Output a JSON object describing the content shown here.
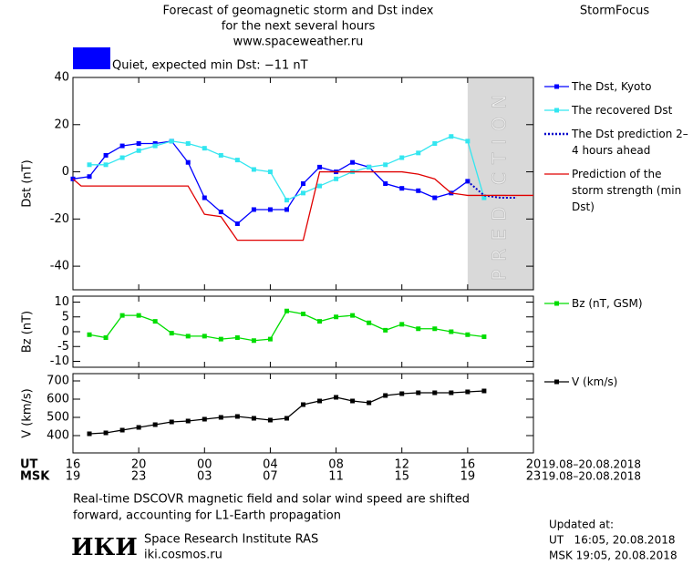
{
  "header": {
    "title_lines": [
      "Forecast of geomagnetic storm and Dst index",
      "for the next several hours",
      "www.spaceweather.ru"
    ],
    "brand": "StormFocus"
  },
  "status": {
    "color": "#0000ff",
    "text": "Quiet, expected min Dst: −11 nT"
  },
  "chart_data": [
    {
      "type": "line",
      "y_label": "Dst (nT)",
      "xlim": [
        16,
        44
      ],
      "ylim": [
        -50,
        40
      ],
      "yticks": [
        -40,
        -20,
        0,
        20,
        40
      ],
      "prediction_span": [
        40,
        44
      ],
      "prediction_label": "PREDICTION",
      "series": [
        {
          "name": "The Dst, Kyoto",
          "color": "#0000ff",
          "marker": true,
          "x": [
            16,
            17,
            18,
            19,
            20,
            21,
            22,
            23,
            24,
            25,
            26,
            27,
            28,
            29,
            30,
            31,
            32,
            33,
            34,
            35,
            36,
            37,
            38,
            39,
            40
          ],
          "values": [
            -3,
            -2,
            7,
            11,
            12,
            12,
            13,
            4,
            -11,
            -17,
            -22,
            -16,
            -16,
            -16,
            -5,
            2,
            0,
            4,
            2,
            -5,
            -7,
            -8,
            -11,
            -9,
            -4
          ]
        },
        {
          "name": "The recovered Dst",
          "color": "#33e6f0",
          "marker": true,
          "x": [
            17,
            18,
            19,
            20,
            21,
            22,
            23,
            24,
            25,
            26,
            27,
            28,
            29,
            30,
            31,
            32,
            33,
            34,
            35,
            36,
            37,
            38,
            39,
            40,
            41
          ],
          "values": [
            3,
            3,
            6,
            9,
            11,
            13,
            12,
            10,
            7,
            5,
            1,
            0,
            -12,
            -9,
            -6,
            -3,
            0,
            2,
            3,
            6,
            8,
            12,
            15,
            13,
            -11
          ]
        },
        {
          "name": "The Dst prediction 2–4 hours ahead",
          "color": "#0000cc",
          "dash": "2 2",
          "marker": false,
          "x": [
            40,
            41,
            42,
            43
          ],
          "values": [
            -4,
            -10,
            -11,
            -11
          ]
        },
        {
          "name": "Prediction of the storm strength (min Dst)",
          "color": "#e00000",
          "marker": false,
          "x": [
            16,
            16.5,
            23,
            24,
            25,
            26,
            30,
            31,
            36,
            37,
            38,
            39,
            40,
            44
          ],
          "values": [
            -3,
            -6,
            -6,
            -18,
            -19,
            -29,
            -29,
            0,
            0,
            -1,
            -3,
            -9,
            -10,
            -10
          ]
        }
      ]
    },
    {
      "type": "line",
      "y_label": "Bz (nT)",
      "xlim": [
        16,
        44
      ],
      "ylim": [
        -12,
        12
      ],
      "yticks": [
        -10,
        -5,
        0,
        5,
        10
      ],
      "series": [
        {
          "name": "Bz (nT, GSM)",
          "color": "#00dd00",
          "marker": true,
          "x": [
            17,
            18,
            19,
            20,
            21,
            22,
            23,
            24,
            25,
            26,
            27,
            28,
            29,
            30,
            31,
            32,
            33,
            34,
            35,
            36,
            37,
            38,
            39,
            40,
            41
          ],
          "values": [
            -1,
            -2,
            5.5,
            5.5,
            3.5,
            -0.5,
            -1.5,
            -1.5,
            -2.5,
            -2,
            -3,
            -2.5,
            7,
            6,
            3.5,
            5,
            5.5,
            3,
            0.5,
            2.5,
            1,
            1,
            0,
            -1,
            -1.7
          ]
        }
      ]
    },
    {
      "type": "line",
      "y_label": "V (km/s)",
      "xlim": [
        16,
        44
      ],
      "ylim": [
        305,
        740
      ],
      "yticks": [
        400,
        500,
        600,
        700
      ],
      "xticks": [
        16,
        20,
        {
          "value": 24,
          "label": "00"
        },
        {
          "value": 28,
          "label": "04"
        },
        {
          "value": 32,
          "label": "08"
        },
        {
          "value": 36,
          "label": "12"
        },
        {
          "value": 40,
          "label": "16"
        },
        {
          "value": 44,
          "label": "20"
        }
      ],
      "msk_ticks": [
        {
          "value": 16,
          "label": "19"
        },
        {
          "value": 20,
          "label": "23"
        },
        {
          "value": 24,
          "label": "03"
        },
        {
          "value": 28,
          "label": "07"
        },
        {
          "value": 32,
          "label": "11"
        },
        {
          "value": 36,
          "label": "15"
        },
        {
          "value": 40,
          "label": "19"
        },
        {
          "value": 44,
          "label": "23"
        }
      ],
      "ut_label": "UT",
      "msk_label": "MSK",
      "ut_range": "19.08–20.08.2018",
      "msk_range": "19.08–20.08.2018",
      "series": [
        {
          "name": "V (km/s)",
          "color": "#000000",
          "marker": true,
          "x": [
            17,
            18,
            19,
            20,
            21,
            22,
            23,
            24,
            25,
            26,
            27,
            28,
            29,
            30,
            31,
            32,
            33,
            34,
            35,
            36,
            37,
            38,
            39,
            40,
            41
          ],
          "values": [
            410,
            415,
            430,
            445,
            460,
            475,
            480,
            490,
            500,
            505,
            495,
            485,
            495,
            570,
            590,
            610,
            590,
            580,
            620,
            630,
            635,
            635,
            635,
            640,
            645
          ]
        }
      ]
    }
  ],
  "footer": {
    "note_lines": [
      "Real-time DSCOVR magnetic field and solar wind speed are shifted",
      "forward, accounting for L1-Earth propagation"
    ],
    "logo": "ИКИ",
    "institute": "Space Research Institute RAS",
    "site": "iki.cosmos.ru",
    "updated": [
      "Updated at:",
      "UT   16:05, 20.08.2018",
      "MSK 19:05, 20.08.2018"
    ]
  }
}
